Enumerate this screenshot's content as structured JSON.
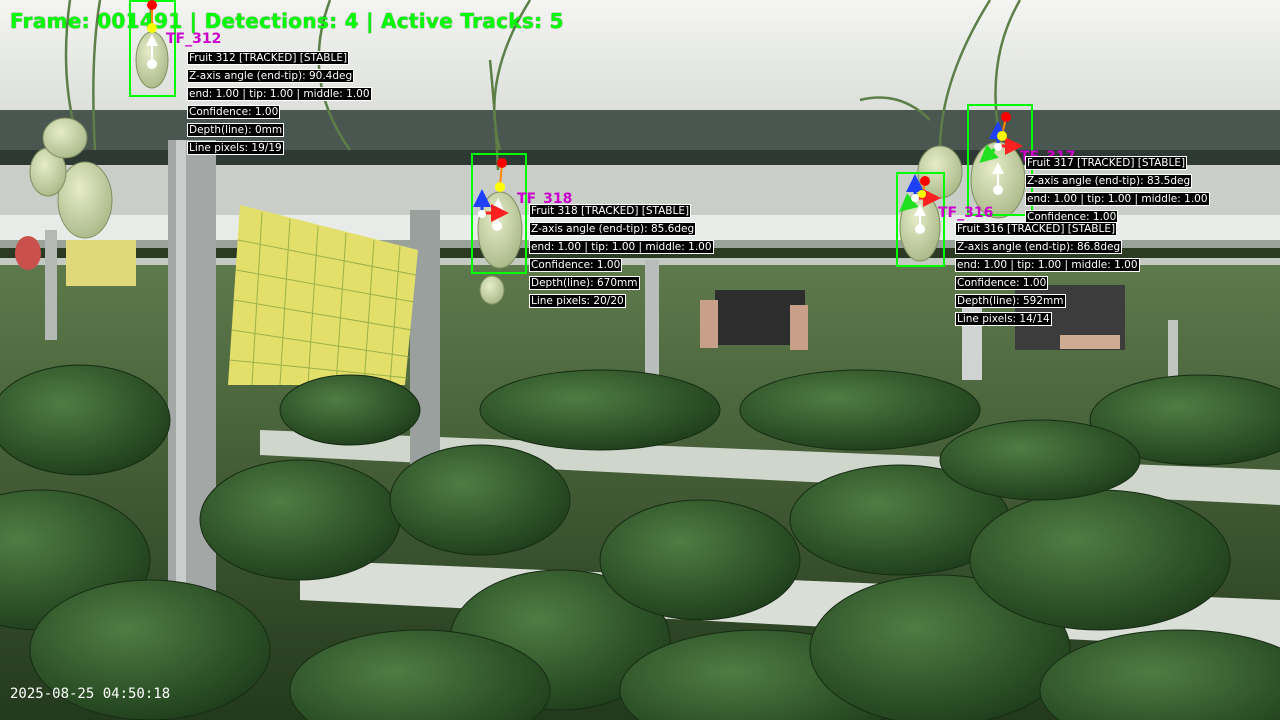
{
  "hud": {
    "frame_text": "Frame: 001491 | Detections: 4 | Active Tracks: 5",
    "timestamp": "2025-08-25 04:50:18"
  },
  "colors": {
    "box": "#00ff00",
    "track_tag": "#cc00cc",
    "end_point": "#ffffff",
    "tip_point": "#ff0000",
    "middle_point": "#ffff00"
  },
  "tracks": [
    {
      "tag": "TF_312",
      "lines": [
        "Fruit 312 [TRACKED] [STABLE]",
        "Z-axis angle (end-tip): 90.4deg",
        "end: 1.00 | tip: 1.00 | middle: 1.00",
        "Confidence: 1.00",
        "Depth(line): 0mm",
        "Line pixels: 19/19"
      ]
    },
    {
      "tag": "TF_318",
      "lines": [
        "Fruit 318 [TRACKED] [STABLE]",
        "Z-axis angle (end-tip): 85.6deg",
        "end: 1.00 | tip: 1.00 | middle: 1.00",
        "Confidence: 1.00",
        "Depth(line): 670mm",
        "Line pixels: 20/20"
      ]
    },
    {
      "tag": "TF_317",
      "lines": [
        "Fruit 317 [TRACKED] [STABLE]",
        "Z-axis angle (end-tip): 83.5deg",
        "end: 1.00 | tip: 1.00 | middle: 1.00",
        "Confidence: 1.00"
      ]
    },
    {
      "tag": "TF_316",
      "lines": [
        "Fruit 316 [TRACKED] [STABLE]",
        "Z-axis angle (end-tip): 86.8deg",
        "end: 1.00 | tip: 1.00 | middle: 1.00",
        "Confidence: 1.00",
        "Depth(line): 592mm",
        "Line pixels: 14/14"
      ]
    }
  ]
}
